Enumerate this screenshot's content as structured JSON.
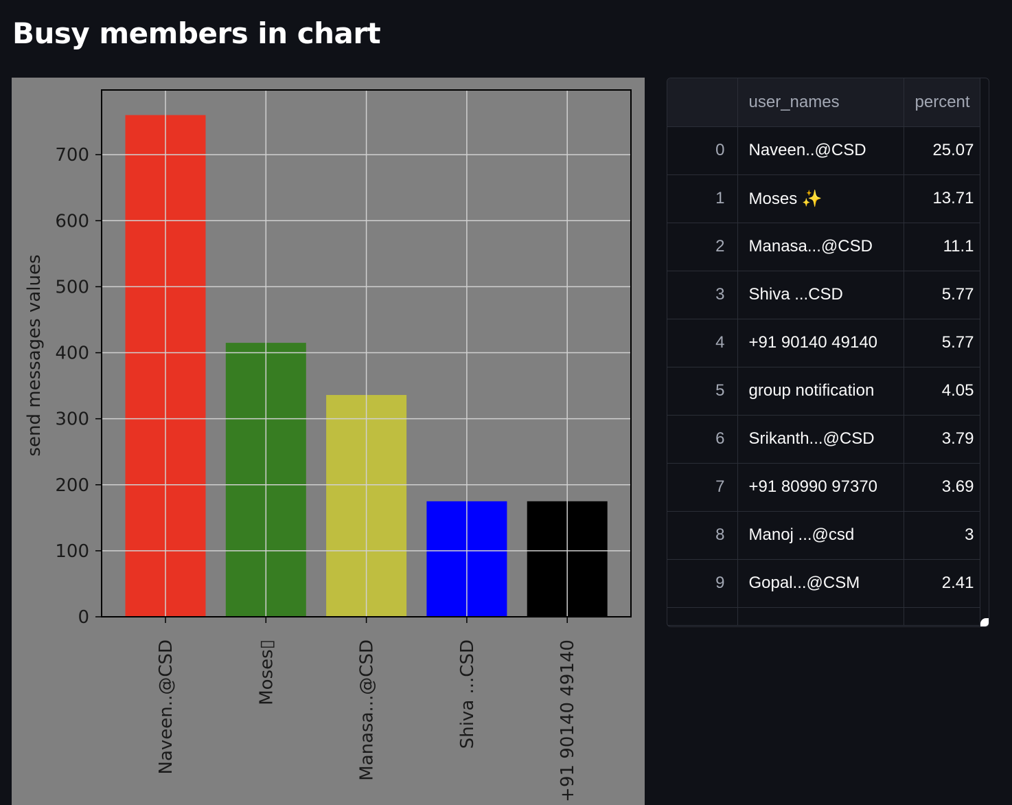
{
  "header": {
    "title": "Busy members in chart"
  },
  "chart_data": {
    "type": "bar",
    "categories": [
      "Naveen..@CSD",
      "Moses▯",
      "Manasa...@CSD",
      "Shiva ...CSD",
      "+91 90140 49140"
    ],
    "values": [
      760,
      415,
      336,
      175,
      175
    ],
    "colors": [
      "#e83323",
      "#377d22",
      "#bfbe40",
      "#0000ff",
      "#000000"
    ],
    "title": "",
    "xlabel": "",
    "ylabel": "send messages values",
    "ylim": [
      0,
      798
    ],
    "yticks": [
      0,
      100,
      200,
      300,
      400,
      500,
      600,
      700
    ],
    "grid": true,
    "background": "#808080",
    "gridColor": "#d0d0d0"
  },
  "table": {
    "columns": [
      "",
      "user_names",
      "percent"
    ],
    "rows": [
      {
        "index": "0",
        "name": "Naveen..@CSD",
        "icon": "",
        "percent": "25.07"
      },
      {
        "index": "1",
        "name": "Moses ",
        "icon": "✨",
        "percent": "13.71"
      },
      {
        "index": "2",
        "name": "Manasa...@CSD",
        "icon": "",
        "percent": "11.1"
      },
      {
        "index": "3",
        "name": "Shiva ...CSD",
        "icon": "",
        "percent": "5.77"
      },
      {
        "index": "4",
        "name": "+91 90140 49140",
        "icon": "",
        "percent": "5.77"
      },
      {
        "index": "5",
        "name": "group notification",
        "icon": "",
        "percent": "4.05"
      },
      {
        "index": "6",
        "name": "Srikanth...@CSD",
        "icon": "",
        "percent": "3.79"
      },
      {
        "index": "7",
        "name": "+91 80990 97370",
        "icon": "",
        "percent": "3.69"
      },
      {
        "index": "8",
        "name": "Manoj ...@csd",
        "icon": "",
        "percent": "3"
      },
      {
        "index": "9",
        "name": "Gopal...@CSM",
        "icon": "",
        "percent": "2.41"
      }
    ]
  }
}
